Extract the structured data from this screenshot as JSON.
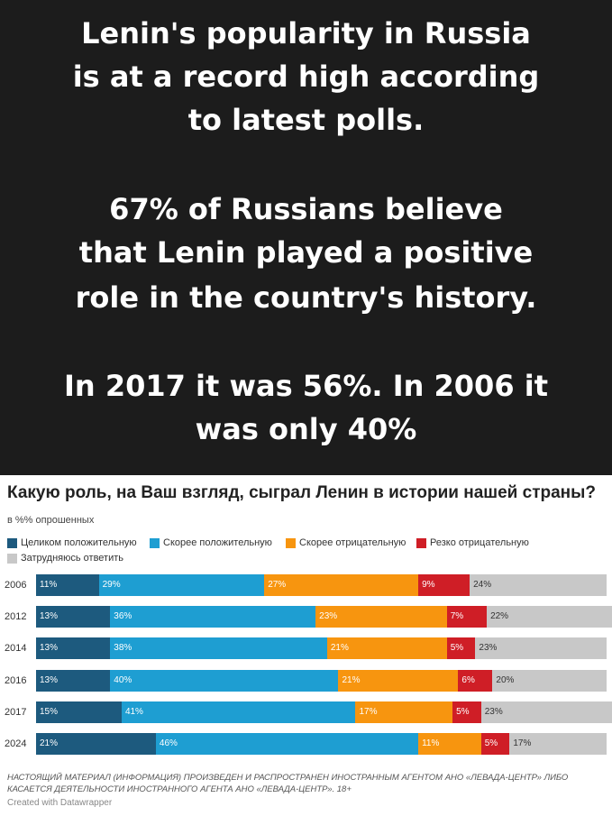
{
  "headline": {
    "lines": [
      "Lenin's popularity in Russia",
      "is at a record high according",
      "to latest polls.",
      "67% of Russians believe",
      "that Lenin played a positive",
      "role in the country's history.",
      "In 2017 it was 56%. In 2006 it",
      "was only 40%"
    ]
  },
  "chart_data": {
    "type": "bar",
    "orientation": "horizontal",
    "stacked": true,
    "title": "Какую роль, на Ваш взгляд, сыграл Ленин в истории нашей страны?",
    "subtitle": "в %% опрошенных",
    "categories": [
      "2006",
      "2012",
      "2014",
      "2016",
      "2017",
      "2024"
    ],
    "series": [
      {
        "name": "Целиком положительную",
        "color": "#1d5a7e",
        "label_color": "#ffffff",
        "values": [
          11,
          13,
          13,
          13,
          15,
          21
        ]
      },
      {
        "name": "Скорее положительную",
        "color": "#1e9ed2",
        "label_color": "#ffffff",
        "values": [
          29,
          36,
          38,
          40,
          41,
          46
        ]
      },
      {
        "name": "Скорее отрицательную",
        "color": "#f7950f",
        "label_color": "#ffffff",
        "values": [
          27,
          23,
          21,
          21,
          17,
          11
        ]
      },
      {
        "name": "Резко отрицательную",
        "color": "#cf1e26",
        "label_color": "#ffffff",
        "values": [
          9,
          7,
          5,
          6,
          5,
          5
        ]
      },
      {
        "name": "Затрудняюсь ответить",
        "color": "#c8c8c8",
        "label_color": "#333333",
        "values": [
          24,
          22,
          23,
          20,
          23,
          17
        ]
      }
    ],
    "legend_position": "top",
    "xlim": [
      0,
      100
    ]
  },
  "footnote": "НАСТОЯЩИЙ МАТЕРИАЛ (ИНФОРМАЦИЯ) ПРОИЗВЕДЕН И РАСПРОСТРАНЕН ИНОСТРАННЫМ АГЕНТОМ АНО «ЛЕВАДА-ЦЕНТР» ЛИБО КАСАЕТСЯ ДЕЯТЕЛЬНОСТИ ИНОСТРАННОГО АГЕНТА АНО «ЛЕВАДА-ЦЕНТР». 18+",
  "credit": "Created with Datawrapper"
}
